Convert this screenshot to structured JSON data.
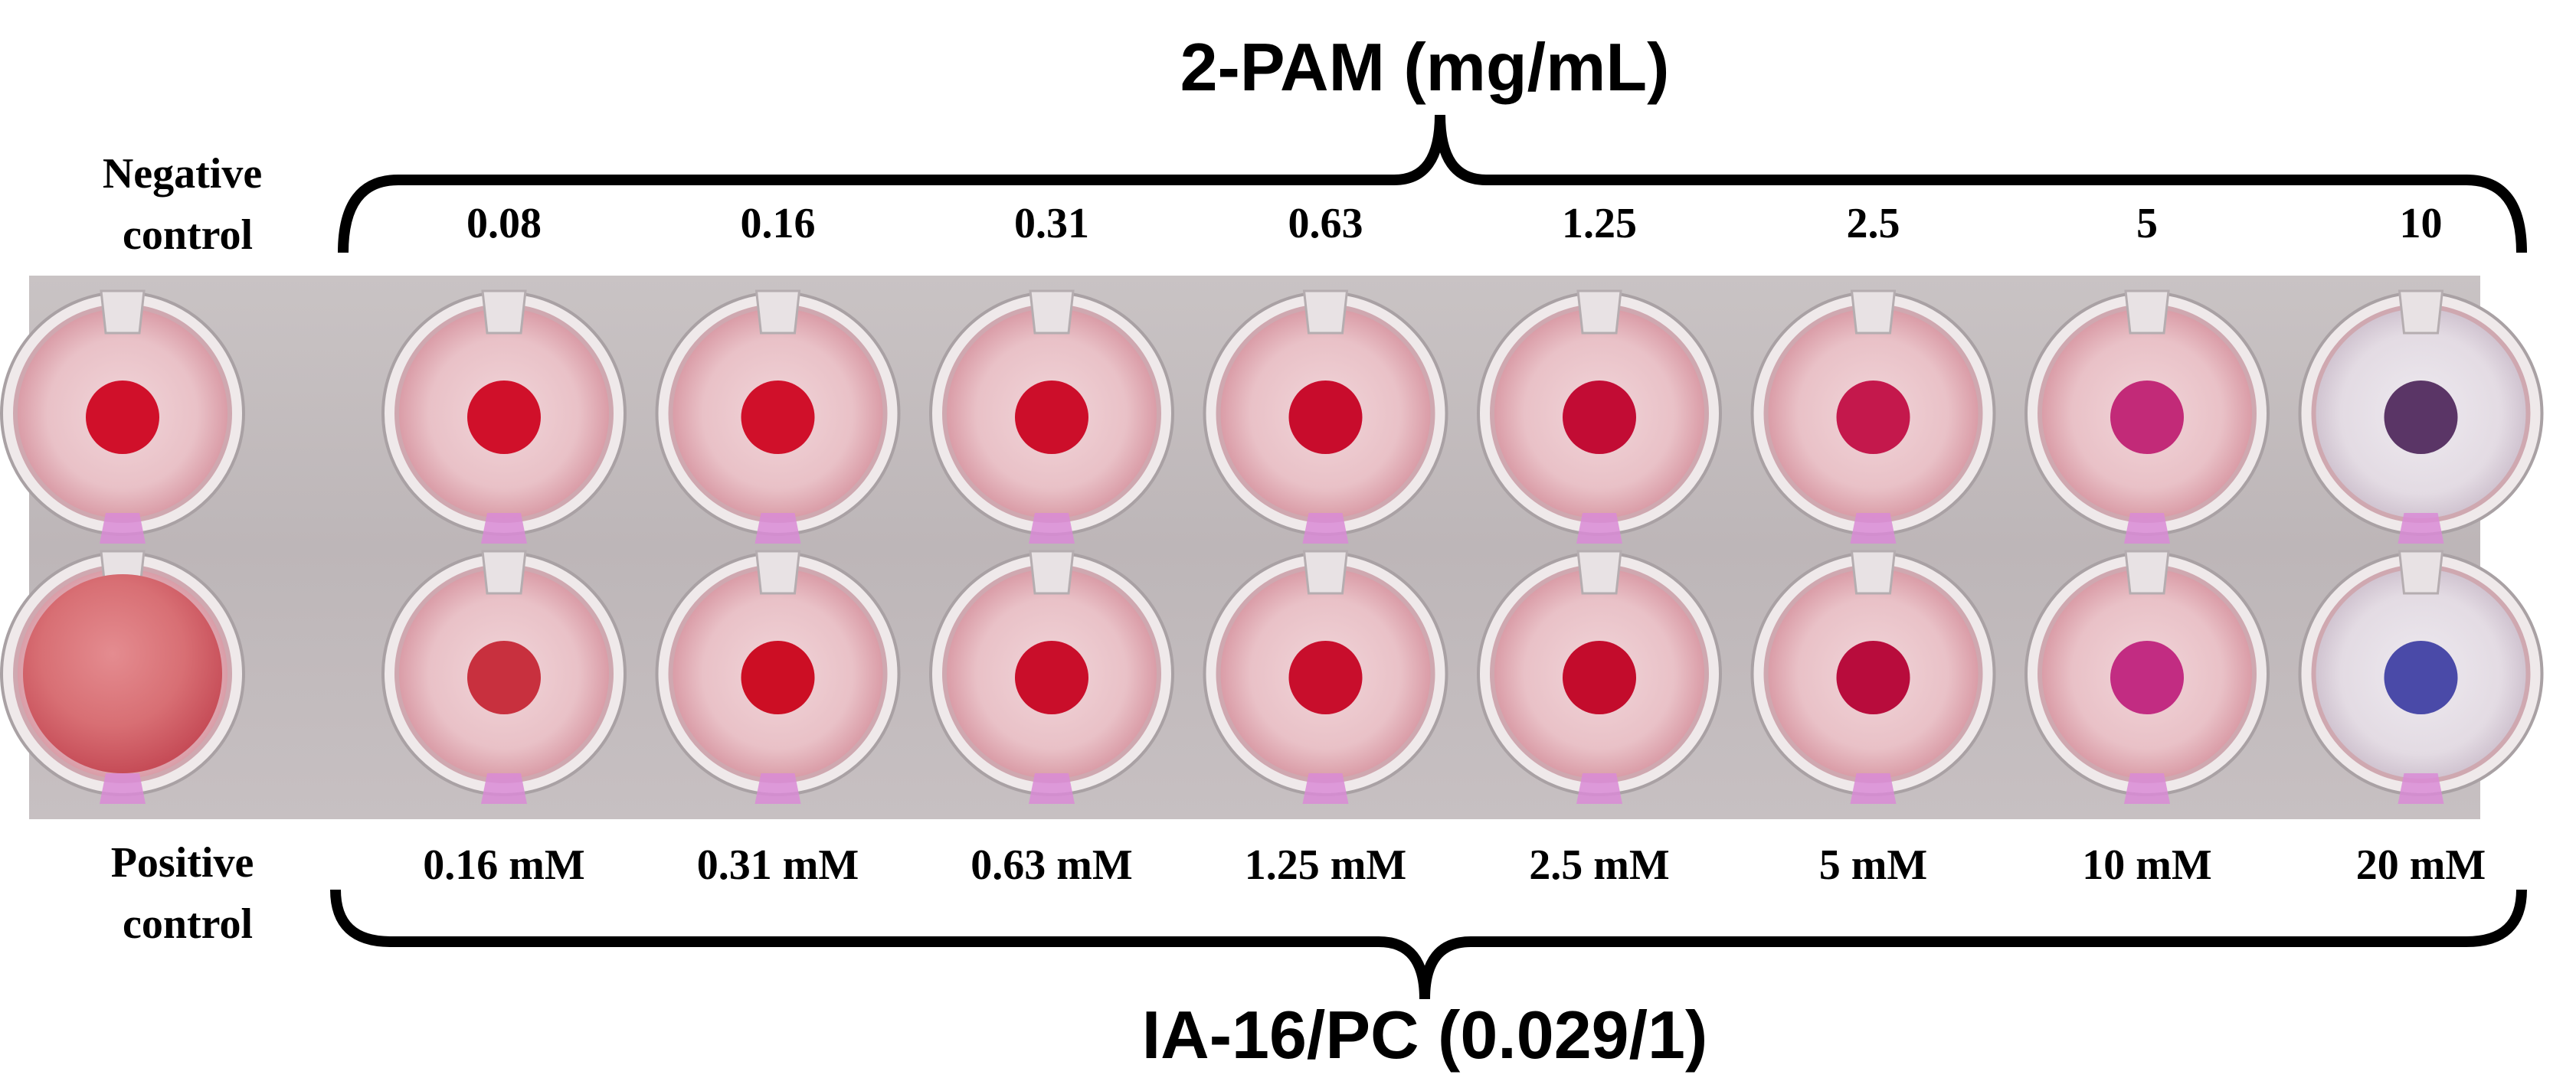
{
  "figure": {
    "top_title": "2-PAM (mg/mL)",
    "bottom_title": "IA-16/PC (0.029/1)",
    "negative_control": [
      "Negative",
      "control"
    ],
    "positive_control": [
      "Positive",
      "control"
    ],
    "top_concentrations": [
      "0.08",
      "0.16",
      "0.31",
      "0.63",
      "1.25",
      "2.5",
      "5",
      "10"
    ],
    "bottom_concentrations": [
      "0.16 mM",
      "0.31 mM",
      "0.63 mM",
      "1.25 mM",
      "2.5 mM",
      "5 mM",
      "10 mM",
      "20 mM"
    ],
    "top_row_dot_colors": [
      "#d0102a",
      "#d0102a",
      "#cc0e2a",
      "#c80c2c",
      "#c20c34",
      "#c4184c",
      "#c22a78",
      "#5a3566"
    ],
    "bottom_row_dot_colors": [
      "#c8303e",
      "#cc0e24",
      "#c90e2a",
      "#c80e2c",
      "#c30c2c",
      "#b80c3c",
      "#c22c82",
      "#4a4aa8"
    ],
    "positive_control_well": "diffuse-red",
    "negative_control_well": "red-button"
  }
}
